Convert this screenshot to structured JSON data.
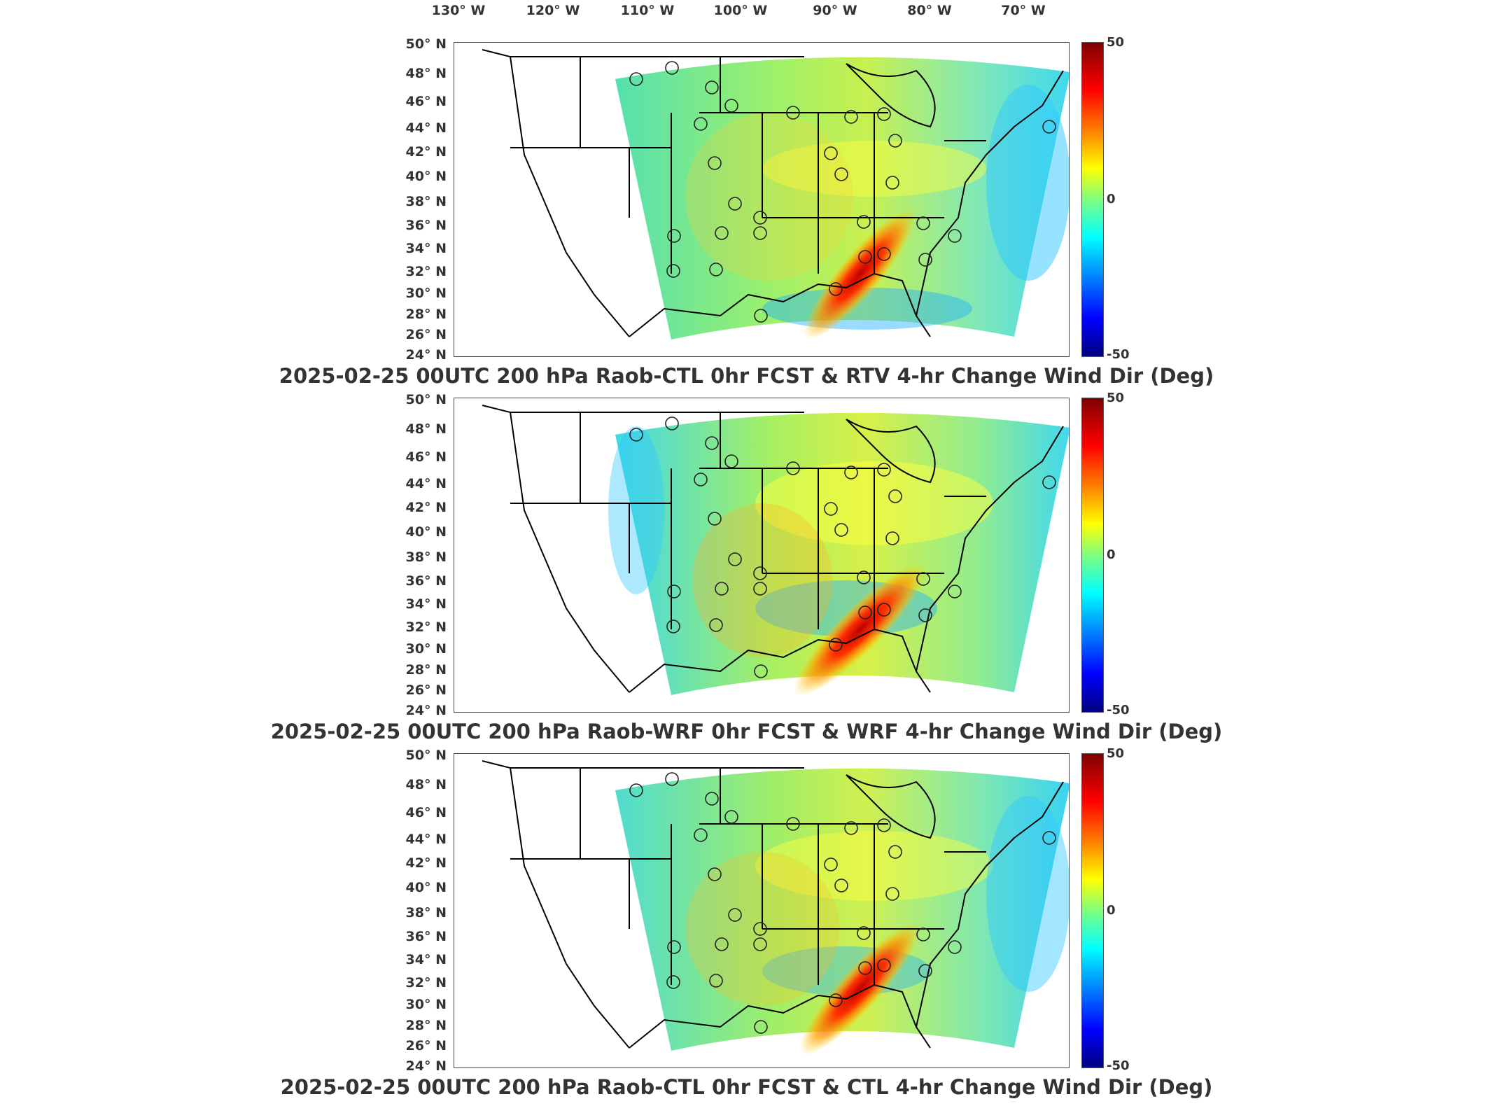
{
  "longitude_labels": [
    "130° W",
    "120° W",
    "110° W",
    "100° W",
    "90° W",
    "80° W",
    "70° W"
  ],
  "latitude_labels": [
    "50° N",
    "48° N",
    "46° N",
    "44° N",
    "42° N",
    "40° N",
    "38° N",
    "36° N",
    "34° N",
    "32° N",
    "30° N",
    "28° N",
    "26° N",
    "24° N"
  ],
  "colorbar": {
    "max_label": "50",
    "mid_label": "0",
    "min_label": "-50",
    "colors": [
      "#7f0000",
      "#ff0000",
      "#ff7f00",
      "#ffff00",
      "#7fff7f",
      "#00ffff",
      "#007fff",
      "#0000ff",
      "#00007f"
    ]
  },
  "panels": [
    {
      "title": "2025-02-25 00UTC 200 hPa Raob-CTL 0hr FCST & RTV 4-hr Change Wind Dir (Deg)"
    },
    {
      "title": "2025-02-25 00UTC 200 hPa Raob-WRF 0hr FCST & WRF 4-hr Change Wind Dir (Deg)"
    },
    {
      "title": "2025-02-25 00UTC 200 hPa Raob-CTL 0hr FCST & CTL 4-hr Change Wind Dir (Deg)"
    }
  ]
}
